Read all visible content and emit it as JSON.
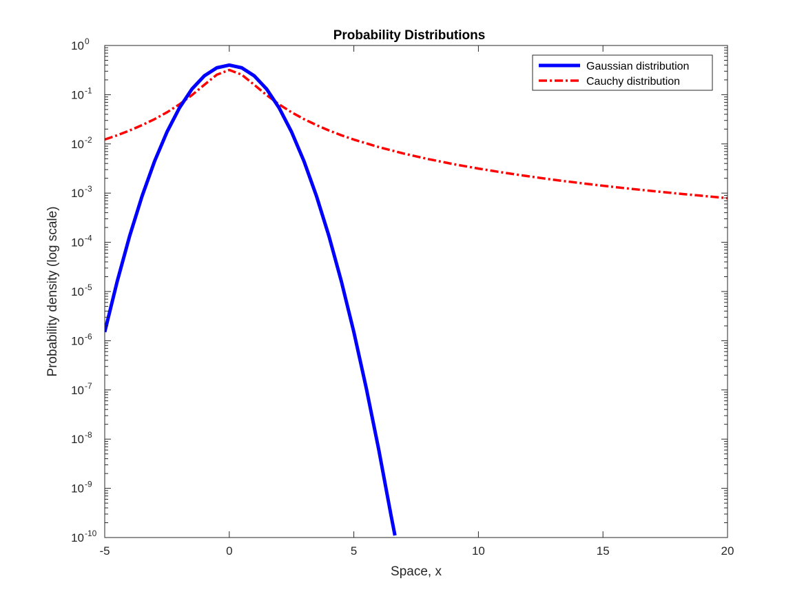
{
  "chart_data": {
    "type": "line",
    "title": "Probability Distributions",
    "xlabel": "Space, x",
    "ylabel": "Probability density (log scale)",
    "xlim": [
      -5,
      20
    ],
    "ylim": [
      1e-10,
      1
    ],
    "yscale": "log",
    "grid": false,
    "legend_position": "top-right",
    "x_ticks": [
      -5,
      0,
      5,
      10,
      15,
      20
    ],
    "y_tick_exponents": [
      -10,
      -9,
      -8,
      -7,
      -6,
      -5,
      -4,
      -3,
      -2,
      -1,
      0
    ],
    "series": [
      {
        "name": "Gaussian distribution",
        "color": "#0000ff",
        "style": "solid",
        "x": [
          -5,
          -4.5,
          -4,
          -3.5,
          -3,
          -2.5,
          -2,
          -1.5,
          -1,
          -0.5,
          0,
          0.5,
          1,
          1.5,
          2,
          2.5,
          3,
          3.5,
          4,
          4.5,
          5,
          5.5,
          6,
          6.5,
          6.65
        ],
        "y": [
          1.5e-06,
          1.6e-05,
          0.000134,
          0.00087,
          0.00443,
          0.0175,
          0.054,
          0.13,
          0.242,
          0.352,
          0.399,
          0.352,
          0.242,
          0.13,
          0.054,
          0.0175,
          0.00443,
          0.00087,
          0.000134,
          1.6e-05,
          1.5e-06,
          1.08e-07,
          6.1e-09,
          2.7e-10,
          1.1e-10
        ]
      },
      {
        "name": "Cauchy distribution",
        "color": "#ff0000",
        "style": "dash-dot",
        "x": [
          -5,
          -4.5,
          -4,
          -3.5,
          -3,
          -2.5,
          -2,
          -1.5,
          -1,
          -0.5,
          0,
          0.5,
          1,
          1.5,
          2,
          2.5,
          3,
          3.5,
          4,
          4.5,
          5,
          6,
          7,
          8,
          9,
          10,
          11,
          12,
          13,
          14,
          15,
          16,
          17,
          18,
          19,
          20
        ],
        "y": [
          0.01224,
          0.01496,
          0.01872,
          0.02411,
          0.03183,
          0.0439,
          0.06366,
          0.09794,
          0.15915,
          0.25465,
          0.31831,
          0.25465,
          0.15915,
          0.09794,
          0.06366,
          0.0439,
          0.03183,
          0.02411,
          0.01872,
          0.01496,
          0.01224,
          0.0086,
          0.00637,
          0.0049,
          0.00388,
          0.00315,
          0.00261,
          0.0022,
          0.00187,
          0.00162,
          0.00141,
          0.00124,
          0.0011,
          0.00098,
          0.00088,
          0.00079
        ]
      }
    ]
  }
}
